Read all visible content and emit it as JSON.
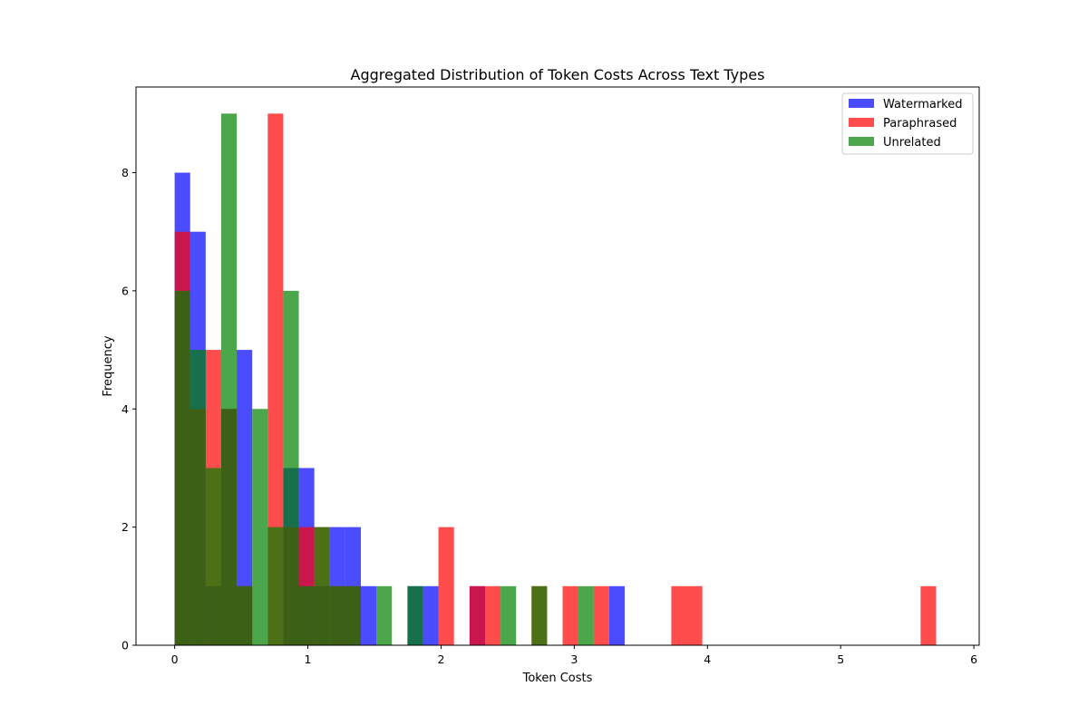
{
  "chart_data": {
    "type": "bar",
    "subtype": "overlaid-histogram",
    "title": "Aggregated Distribution of Token Costs Across Text Types",
    "xlabel": "Token Costs",
    "ylabel": "Frequency",
    "xlim": [
      -0.29,
      6.04
    ],
    "ylim": [
      0,
      9.45
    ],
    "xticks": [
      0,
      1,
      2,
      3,
      4,
      5,
      6
    ],
    "yticks": [
      0,
      2,
      4,
      6,
      8
    ],
    "bin_width": 0.1165,
    "bin_start": 0.0,
    "legend_position": "top-right",
    "alpha": 0.7,
    "series": [
      {
        "name": "Watermarked",
        "color": "#0000ff",
        "bins": [
          {
            "x": 0.0,
            "count": 8
          },
          {
            "x": 0.1165,
            "count": 7
          },
          {
            "x": 0.233,
            "count": 1
          },
          {
            "x": 0.3495,
            "count": 4
          },
          {
            "x": 0.466,
            "count": 5
          },
          {
            "x": 0.5825,
            "count": 0
          },
          {
            "x": 0.699,
            "count": 0
          },
          {
            "x": 0.8155,
            "count": 3
          },
          {
            "x": 0.932,
            "count": 3
          },
          {
            "x": 1.0485,
            "count": 1
          },
          {
            "x": 1.165,
            "count": 2
          },
          {
            "x": 1.2815,
            "count": 2
          },
          {
            "x": 1.398,
            "count": 1
          },
          {
            "x": 1.748,
            "count": 1
          },
          {
            "x": 1.8645,
            "count": 1
          },
          {
            "x": 2.214,
            "count": 1
          },
          {
            "x": 3.262,
            "count": 1
          }
        ]
      },
      {
        "name": "Paraphrased",
        "color": "#ff0000",
        "bins": [
          {
            "x": 0.0,
            "count": 7
          },
          {
            "x": 0.1165,
            "count": 4
          },
          {
            "x": 0.233,
            "count": 5
          },
          {
            "x": 0.3495,
            "count": 4
          },
          {
            "x": 0.466,
            "count": 1
          },
          {
            "x": 0.5825,
            "count": 0
          },
          {
            "x": 0.699,
            "count": 9
          },
          {
            "x": 0.8155,
            "count": 2
          },
          {
            "x": 0.932,
            "count": 2
          },
          {
            "x": 1.0485,
            "count": 2
          },
          {
            "x": 1.165,
            "count": 1
          },
          {
            "x": 1.2815,
            "count": 1
          },
          {
            "x": 1.9805,
            "count": 2
          },
          {
            "x": 2.214,
            "count": 1
          },
          {
            "x": 2.3305,
            "count": 1
          },
          {
            "x": 2.6795,
            "count": 1
          },
          {
            "x": 2.9125,
            "count": 1
          },
          {
            "x": 3.1455,
            "count": 1
          },
          {
            "x": 3.7285,
            "count": 1
          },
          {
            "x": 3.845,
            "count": 1
          },
          {
            "x": 5.6,
            "count": 1
          }
        ]
      },
      {
        "name": "Unrelated",
        "color": "#008000",
        "bins": [
          {
            "x": 0.0,
            "count": 6
          },
          {
            "x": 0.1165,
            "count": 5
          },
          {
            "x": 0.233,
            "count": 3
          },
          {
            "x": 0.3495,
            "count": 9
          },
          {
            "x": 0.466,
            "count": 1
          },
          {
            "x": 0.5825,
            "count": 4
          },
          {
            "x": 0.699,
            "count": 2
          },
          {
            "x": 0.8155,
            "count": 6
          },
          {
            "x": 0.932,
            "count": 1
          },
          {
            "x": 1.0485,
            "count": 2
          },
          {
            "x": 1.165,
            "count": 1
          },
          {
            "x": 1.2815,
            "count": 1
          },
          {
            "x": 1.5145,
            "count": 1
          },
          {
            "x": 1.748,
            "count": 1
          },
          {
            "x": 2.447,
            "count": 1
          },
          {
            "x": 2.6795,
            "count": 1
          },
          {
            "x": 3.029,
            "count": 1
          }
        ]
      }
    ]
  }
}
